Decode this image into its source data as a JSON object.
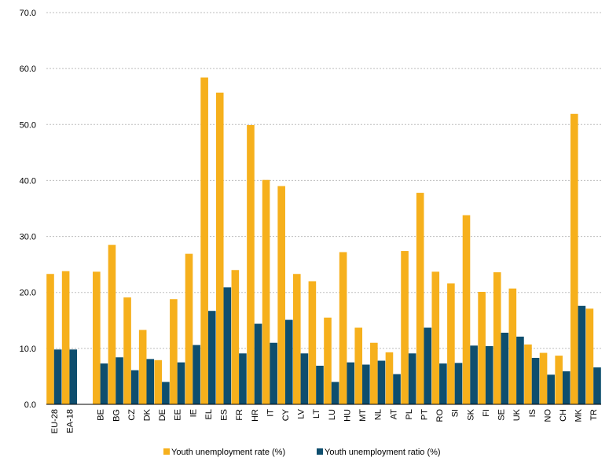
{
  "chart_data": {
    "type": "bar",
    "title": "",
    "xlabel": "",
    "ylabel": "",
    "ylim": [
      0,
      70
    ],
    "yticks": [
      "0.0",
      "10.0",
      "20.0",
      "30.0",
      "40.0",
      "50.0",
      "60.0",
      "70.0"
    ],
    "grid": "horizontal dashed",
    "legend_position": "bottom-center",
    "categories": [
      "EU-28",
      "EA-18",
      "",
      "BE",
      "BG",
      "CZ",
      "DK",
      "DE",
      "EE",
      "IE",
      "EL",
      "ES",
      "FR",
      "HR",
      "IT",
      "CY",
      "LV",
      "LT",
      "LU",
      "HU",
      "MT",
      "NL",
      "AT",
      "PL",
      "PT",
      "RO",
      "SI",
      "SK",
      "FI",
      "SE",
      "UK",
      "IS",
      "NO",
      "CH",
      "MK",
      "TR"
    ],
    "series": [
      {
        "name": "Youth unemployment rate (%)",
        "color": "#F6B01C",
        "values": [
          23.3,
          23.8,
          null,
          23.7,
          28.5,
          19.1,
          13.3,
          7.9,
          18.8,
          26.9,
          58.4,
          55.7,
          24.0,
          49.9,
          40.1,
          39.0,
          23.3,
          22.0,
          15.5,
          27.2,
          13.7,
          11.0,
          9.3,
          27.4,
          37.8,
          23.7,
          21.6,
          33.8,
          20.1,
          23.6,
          20.7,
          10.7,
          9.2,
          8.7,
          51.9,
          17.1
        ]
      },
      {
        "name": "Youth unemployment ratio (%)",
        "color": "#0E4E6E",
        "values": [
          9.8,
          9.8,
          null,
          7.3,
          8.4,
          6.1,
          8.1,
          4.0,
          7.5,
          10.6,
          16.7,
          20.9,
          9.1,
          14.4,
          11.0,
          15.1,
          9.1,
          6.9,
          4.0,
          7.5,
          7.1,
          7.8,
          5.4,
          9.1,
          13.7,
          7.3,
          7.4,
          10.5,
          10.4,
          12.8,
          12.1,
          8.3,
          5.3,
          5.9,
          17.6,
          6.6
        ]
      }
    ]
  }
}
